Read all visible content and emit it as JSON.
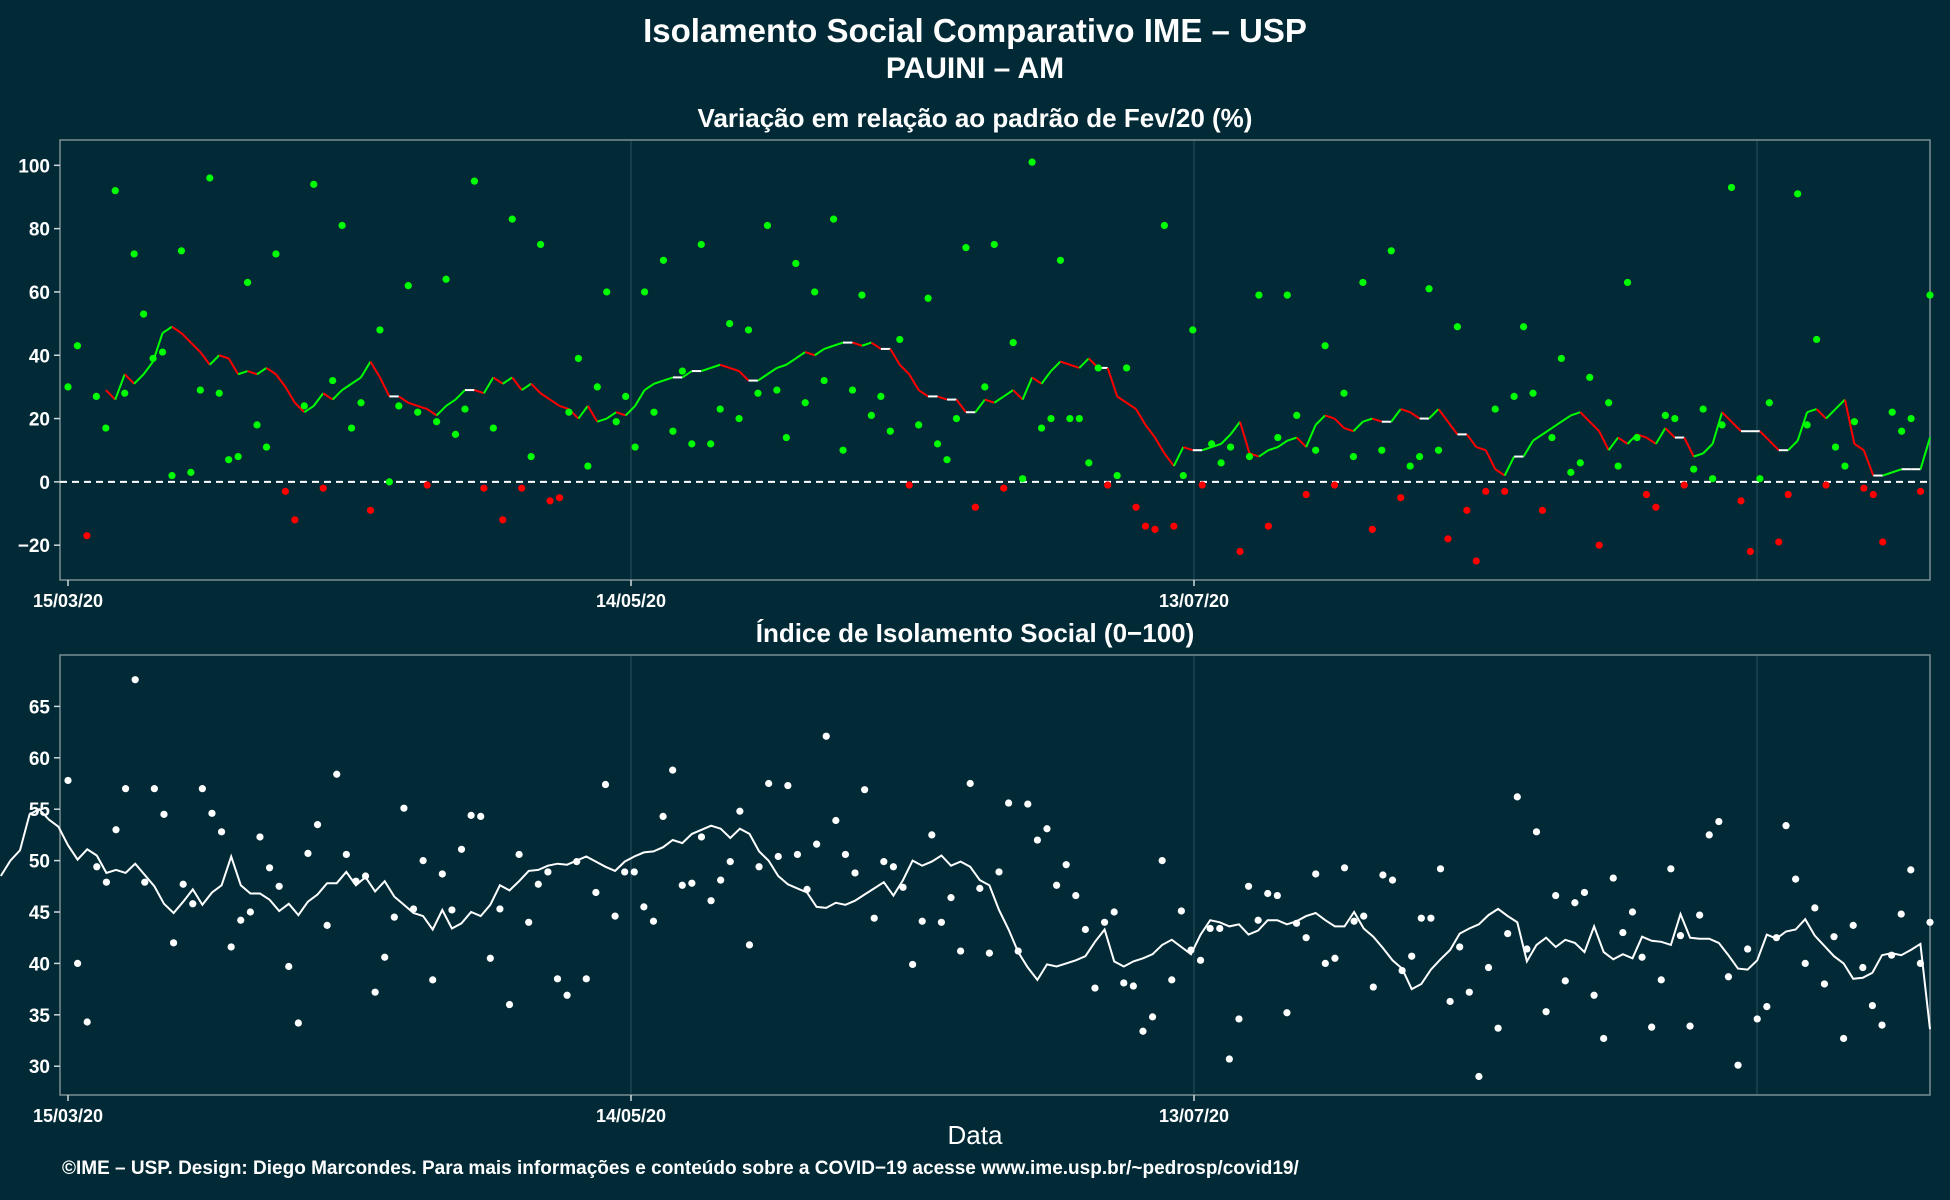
{
  "title": "Isolamento Social Comparativo IME – USP",
  "location": "PAUINI – AM",
  "xlabel": "Data",
  "credit": "©IME – USP. Design: Diego Marcondes. Para mais informações e conteúdo sobre a COVID−19 acesse www.ime.usp.br/~pedrosp/covid19/",
  "colors": {
    "background": "#012a36",
    "positive": "#00ff00",
    "negative": "#ff0000",
    "neutral": "#ffffff"
  },
  "chart_data": [
    {
      "type": "scatter",
      "title": "Variação em relação ao padrão de Fev/20 (%)",
      "x_ticks": [
        "15/03/20",
        "14/05/20",
        "13/07/20"
      ],
      "y_ticks": [
        "100",
        "80",
        "60",
        "40",
        "20",
        "0",
        "−20"
      ],
      "ylim": [
        -31,
        108
      ],
      "reference_line": 0,
      "points": [
        30,
        43,
        -17,
        27,
        17,
        92,
        28,
        72,
        53,
        39,
        41,
        2,
        73,
        3,
        29,
        96,
        28,
        7,
        8,
        63,
        18,
        11,
        72,
        -3,
        -12,
        24,
        94,
        -2,
        32,
        81,
        17,
        25,
        -9,
        48,
        0,
        24,
        62,
        22,
        -1,
        19,
        64,
        15,
        23,
        95,
        -2,
        17,
        -12,
        83,
        -2,
        8,
        75,
        -6,
        -5,
        22,
        39,
        5,
        30,
        60,
        19,
        27,
        11,
        60,
        22,
        70,
        16,
        35,
        12,
        75,
        12,
        23,
        50,
        20,
        48,
        28,
        81,
        29,
        14,
        69,
        25,
        60,
        32,
        83,
        10,
        29,
        59,
        21,
        27,
        16,
        45,
        -1,
        18,
        58,
        12,
        7,
        20,
        74,
        -8,
        30,
        75,
        -2,
        44,
        1,
        101,
        17,
        20,
        70,
        20,
        20,
        6,
        36,
        -1,
        2,
        36,
        -8,
        -14,
        -15,
        81,
        -14,
        2,
        48,
        -1,
        12,
        6,
        11,
        -22,
        8,
        59,
        -14,
        14,
        59,
        21,
        -4,
        10,
        43,
        -1,
        28,
        8,
        63,
        -15,
        10,
        73,
        -5,
        5,
        8,
        61,
        10,
        -18,
        49,
        -9,
        -25,
        -3,
        23,
        -3,
        27,
        49,
        28,
        -9,
        14,
        39,
        3,
        6,
        33,
        -20,
        25,
        5,
        63,
        14,
        -4,
        -8,
        21,
        20,
        -1,
        4,
        23,
        1,
        18,
        93,
        -6,
        -22,
        1,
        25,
        -19,
        -4,
        91,
        18,
        45,
        -1,
        11,
        5,
        19,
        -2,
        -4,
        -19,
        22,
        16,
        20,
        -3,
        59
      ],
      "moving_average": [
        29,
        26,
        34,
        31,
        34,
        38,
        47,
        49,
        47,
        44,
        41,
        37,
        40,
        39,
        34,
        35,
        34,
        36,
        34,
        30,
        25,
        22,
        24,
        28,
        26,
        29,
        31,
        33,
        38,
        33,
        27,
        27,
        25,
        24,
        23,
        21,
        24,
        26,
        29,
        29,
        28,
        33,
        31,
        33,
        29,
        31,
        28,
        26,
        24,
        23,
        20,
        24,
        19,
        20,
        22,
        21,
        24,
        29,
        31,
        32,
        33,
        33,
        35,
        35,
        36,
        37,
        36,
        35,
        32,
        32,
        34,
        36,
        37,
        39,
        41,
        40,
        42,
        43,
        44,
        44,
        43,
        44,
        42,
        42,
        37,
        34,
        29,
        27,
        27,
        26,
        26,
        22,
        22,
        26,
        25,
        27,
        29,
        26,
        33,
        31,
        35,
        38,
        37,
        36,
        39,
        36,
        36,
        27,
        25,
        23,
        18,
        14,
        9,
        5,
        11,
        10,
        10,
        11,
        12,
        15,
        19,
        9,
        8,
        10,
        11,
        13,
        14,
        11,
        18,
        21,
        20,
        17,
        16,
        19,
        20,
        19,
        19,
        23,
        22,
        20,
        20,
        23,
        19,
        15,
        15,
        11,
        10,
        4,
        2,
        8,
        8,
        13,
        15,
        17,
        19,
        21,
        22,
        19,
        16,
        10,
        14,
        12,
        15,
        14,
        12,
        17,
        14,
        14,
        8,
        9,
        12,
        22,
        19,
        16,
        16,
        16,
        13,
        10,
        10,
        13,
        22,
        23,
        20,
        23,
        26,
        12,
        10,
        2,
        2,
        3,
        4,
        4,
        4,
        14
      ]
    },
    {
      "type": "scatter",
      "title": "Índice de Isolamento Social (0−100)",
      "x_ticks": [
        "15/03/20",
        "14/05/20",
        "13/07/20"
      ],
      "y_ticks": [
        "65",
        "60",
        "55",
        "50",
        "45",
        "40",
        "35",
        "30"
      ],
      "ylim": [
        27.2,
        70
      ],
      "points": [
        57.8,
        40.0,
        34.3,
        49.4,
        47.9,
        53.0,
        57.0,
        67.6,
        47.9,
        57.0,
        54.5,
        42.0,
        47.7,
        45.8,
        57.0,
        54.6,
        52.8,
        41.6,
        44.2,
        45.0,
        52.3,
        49.3,
        47.5,
        39.7,
        34.2,
        50.7,
        53.5,
        43.7,
        58.4,
        50.6,
        48.0,
        48.5,
        37.2,
        40.6,
        44.5,
        55.1,
        45.3,
        50.0,
        38.4,
        48.7,
        45.2,
        51.1,
        54.4,
        54.3,
        40.5,
        45.3,
        36.0,
        50.6,
        44.0,
        47.7,
        48.9,
        38.5,
        36.9,
        49.9,
        38.5,
        46.9,
        57.4,
        44.6,
        48.9,
        48.9,
        45.5,
        44.1,
        54.3,
        58.8,
        47.6,
        47.8,
        52.3,
        46.1,
        48.1,
        49.9,
        54.8,
        41.8,
        49.4,
        57.5,
        50.4,
        57.3,
        50.6,
        47.2,
        51.6,
        62.1,
        53.9,
        50.6,
        48.8,
        56.9,
        44.4,
        49.9,
        49.4,
        47.4,
        39.9,
        44.1,
        52.5,
        44.0,
        46.4,
        41.2,
        57.5,
        47.3,
        41.0,
        48.9,
        55.6,
        41.2,
        55.5,
        52.0,
        53.1,
        47.6,
        49.6,
        46.6,
        43.3,
        37.6,
        44.0,
        45.0,
        38.1,
        37.8,
        33.4,
        34.8,
        50.0,
        38.4,
        45.1,
        41.3,
        40.3,
        43.4,
        43.4,
        30.7,
        34.6,
        47.5,
        44.2,
        46.8,
        46.6,
        35.2,
        43.9,
        42.5,
        48.7,
        40.0,
        40.5,
        49.3,
        44.1,
        44.6,
        37.7,
        48.6,
        48.1,
        39.3,
        40.7,
        44.4,
        44.4,
        49.2,
        36.3,
        41.6,
        37.2,
        29.0,
        39.6,
        33.7,
        42.9,
        56.2,
        41.4,
        52.8,
        35.3,
        46.6,
        38.3,
        45.9,
        46.9,
        36.9,
        32.7,
        48.3,
        43.0,
        45.0,
        40.6,
        33.8,
        38.4,
        49.2,
        42.7,
        33.9,
        44.7,
        52.5,
        53.8,
        38.7,
        30.1,
        41.4,
        34.6,
        35.8,
        42.5,
        53.4,
        48.2,
        40.0,
        45.4,
        38.0,
        42.6,
        32.7,
        43.7,
        39.6,
        35.9,
        34.0,
        40.8,
        44.8,
        49.1,
        40.0,
        44.0
      ],
      "moving_average": [
        48.5,
        50.0,
        51.0,
        54.5,
        55.0,
        54.0,
        53.3,
        51.5,
        50.1,
        51.1,
        50.5,
        48.8,
        49.1,
        48.8,
        49.7,
        48.6,
        47.5,
        45.8,
        44.9,
        46.0,
        47.2,
        45.7,
        46.9,
        47.6,
        50.4,
        47.6,
        46.8,
        46.8,
        46.2,
        45.1,
        45.8,
        44.7,
        46.0,
        46.7,
        47.8,
        47.8,
        48.9,
        47.6,
        48.4,
        47.0,
        48.0,
        46.5,
        45.7,
        44.9,
        44.6,
        43.3,
        45.2,
        43.4,
        43.9,
        45.0,
        44.6,
        45.7,
        47.6,
        47.1,
        48.0,
        49.0,
        49.1,
        49.5,
        49.7,
        49.6,
        50.0,
        50.4,
        49.9,
        49.4,
        49.0,
        49.9,
        50.4,
        50.8,
        50.9,
        51.3,
        52.0,
        51.7,
        52.6,
        53.0,
        53.4,
        53.1,
        52.2,
        53.1,
        52.6,
        50.9,
        50.0,
        48.5,
        47.7,
        47.3,
        46.9,
        45.5,
        45.4,
        45.9,
        45.7,
        46.1,
        46.7,
        47.3,
        47.9,
        46.6,
        48.1,
        50.0,
        49.5,
        49.9,
        50.5,
        49.5,
        49.9,
        49.4,
        48.1,
        47.6,
        45.2,
        43.3,
        41.1,
        39.6,
        38.4,
        39.9,
        39.7,
        40.0,
        40.3,
        40.7,
        42.1,
        43.3,
        40.2,
        39.7,
        40.2,
        40.5,
        40.9,
        41.8,
        42.3,
        41.6,
        40.9,
        42.8,
        44.2,
        44.0,
        43.6,
        43.8,
        42.8,
        43.2,
        44.2,
        44.2,
        43.8,
        44.1,
        44.6,
        44.9,
        44.2,
        43.6,
        43.6,
        45.0,
        43.4,
        42.6,
        41.5,
        40.3,
        39.5,
        37.5,
        38.0,
        39.4,
        40.4,
        41.3,
        42.9,
        43.4,
        43.8,
        44.7,
        45.3,
        44.6,
        44.0,
        40.2,
        41.8,
        42.5,
        41.6,
        42.3,
        42.0,
        41.1,
        43.6,
        41.1,
        40.4,
        40.9,
        40.5,
        42.6,
        42.2,
        42.1,
        41.8,
        44.8,
        42.5,
        42.4,
        42.4,
        42.0,
        40.8,
        39.5,
        39.4,
        40.3,
        42.8,
        42.4,
        43.1,
        43.3,
        44.3,
        42.7,
        41.7,
        40.7,
        40.0,
        38.5,
        38.6,
        39.1,
        40.8,
        41.0,
        40.8,
        41.3,
        41.9,
        33.6
      ]
    }
  ]
}
